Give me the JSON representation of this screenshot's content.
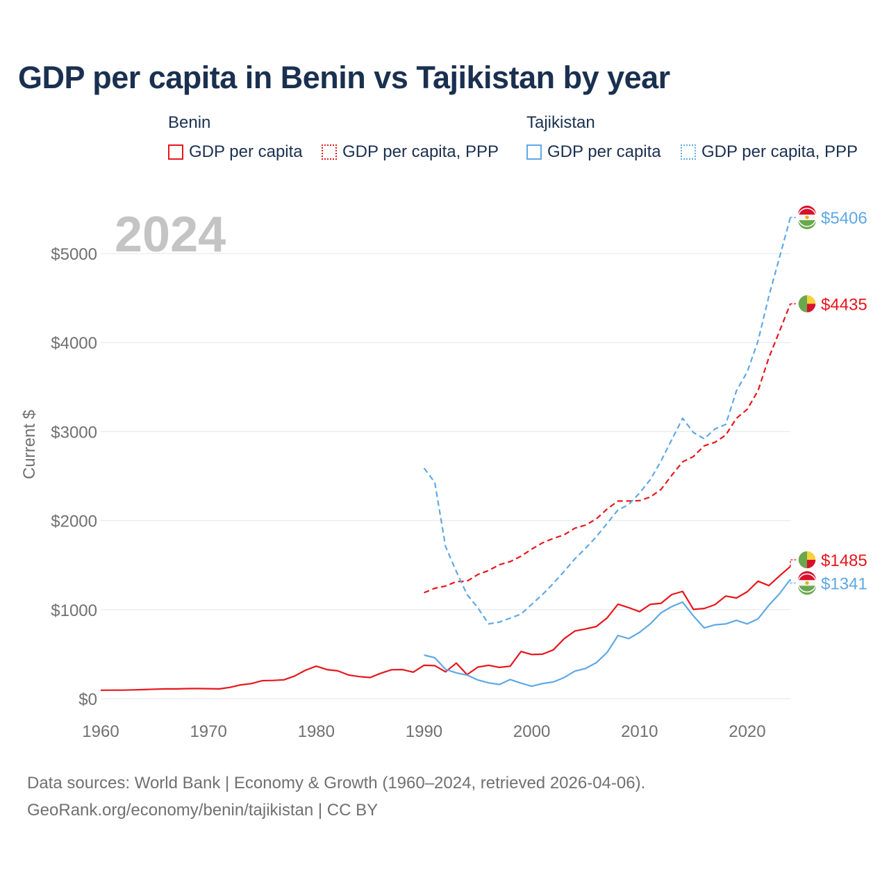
{
  "title": "GDP per capita in Benin vs Tajikistan by year",
  "legend": {
    "groups": [
      {
        "label": "Benin",
        "items": [
          "GDP per capita",
          "GDP per capita, PPP"
        ]
      },
      {
        "label": "Tajikistan",
        "items": [
          "GDP per capita",
          "GDP per capita, PPP"
        ]
      }
    ]
  },
  "colors": {
    "benin": "#e8151b",
    "tajikistan": "#5fa8e6",
    "grid": "#e6e6e6",
    "axis_text": "#707070",
    "year_watermark": "#c4c4c4"
  },
  "footer": {
    "line1": "Data sources: World Bank | Economy & Growth (1960–2024, retrieved 2026-04-06).",
    "line2": "GeoRank.org/economy/benin/tajikistan | CC BY"
  },
  "chart_data": {
    "type": "line",
    "title": "GDP per capita in Benin vs Tajikistan by year",
    "year_label": "2024",
    "xlabel": "",
    "ylabel": "Current $",
    "xlim": [
      1960,
      2024
    ],
    "ylim": [
      0,
      5400
    ],
    "x_ticks": [
      1960,
      1970,
      1980,
      1990,
      2000,
      2010,
      2020
    ],
    "y_ticks": [
      0,
      1000,
      2000,
      3000,
      4000,
      5000
    ],
    "y_tick_labels": [
      "$0",
      "$1000",
      "$2000",
      "$3000",
      "$4000",
      "$5000"
    ],
    "end_labels": [
      {
        "series": "tajikistan_ppp",
        "text": "$5406",
        "value": 5406,
        "label_value": 5406
      },
      {
        "series": "benin_ppp",
        "text": "$4435",
        "value": 4435,
        "label_value": 4435
      },
      {
        "series": "benin_gdp",
        "text": "$1485",
        "value": 1485,
        "label_value": 1560
      },
      {
        "series": "tajikistan_gdp",
        "text": "$1341",
        "value": 1341,
        "label_value": 1300
      }
    ],
    "series": [
      {
        "id": "benin_gdp",
        "name": "Benin GDP per capita",
        "color": "#e8151b",
        "dashed": false,
        "start_year": 1960,
        "values": [
          95,
          96,
          96,
          99,
          102,
          107,
          110,
          110,
          113,
          114,
          112,
          110,
          127,
          155,
          170,
          203,
          205,
          212,
          255,
          320,
          365,
          327,
          313,
          266,
          248,
          238,
          286,
          325,
          327,
          298,
          375,
          371,
          302,
          400,
          270,
          355,
          375,
          352,
          365,
          530,
          496,
          500,
          548,
          673,
          760,
          783,
          811,
          908,
          1062,
          1023,
          977,
          1060,
          1072,
          1170,
          1205,
          1003,
          1013,
          1056,
          1153,
          1131,
          1201,
          1320,
          1270,
          1380,
          1485
        ]
      },
      {
        "id": "benin_ppp",
        "name": "Benin GDP per capita, PPP",
        "color": "#e8151b",
        "dashed": true,
        "start_year": 1990,
        "values": [
          1190,
          1240,
          1265,
          1315,
          1320,
          1395,
          1440,
          1505,
          1540,
          1600,
          1680,
          1750,
          1800,
          1840,
          1915,
          1950,
          2020,
          2130,
          2220,
          2220,
          2225,
          2265,
          2350,
          2510,
          2660,
          2720,
          2840,
          2880,
          2960,
          3150,
          3250,
          3460,
          3830,
          4130,
          4435
        ]
      },
      {
        "id": "tajikistan_gdp",
        "name": "Tajikistan GDP per capita",
        "color": "#5fa8e6",
        "dashed": false,
        "start_year": 1990,
        "values": [
          490,
          460,
          330,
          290,
          265,
          210,
          178,
          160,
          215,
          175,
          140,
          170,
          188,
          237,
          310,
          340,
          405,
          520,
          710,
          675,
          745,
          840,
          965,
          1035,
          1085,
          930,
          795,
          830,
          840,
          880,
          840,
          897,
          1050,
          1180,
          1341
        ]
      },
      {
        "id": "tajikistan_ppp",
        "name": "Tajikistan GDP per capita, PPP",
        "color": "#5fa8e6",
        "dashed": true,
        "start_year": 1990,
        "values": [
          2590,
          2430,
          1710,
          1430,
          1170,
          1020,
          840,
          860,
          905,
          950,
          1060,
          1170,
          1295,
          1430,
          1570,
          1690,
          1820,
          1970,
          2120,
          2180,
          2310,
          2460,
          2670,
          2910,
          3150,
          2990,
          2920,
          3030,
          3080,
          3460,
          3670,
          4020,
          4520,
          4960,
          5406
        ]
      }
    ]
  }
}
